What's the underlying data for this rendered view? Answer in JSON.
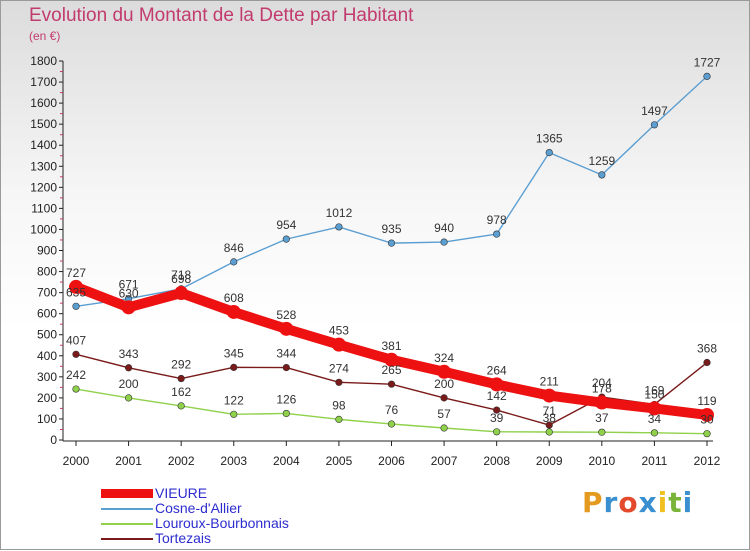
{
  "title": "Evolution du Montant de la Dette par Habitant",
  "subtitle": "(en €)",
  "brand": {
    "text": "Proxiti",
    "colors": [
      "#e39a1f",
      "#3a8fd0",
      "#e34a2c",
      "#3a8fd0",
      "#f0c020",
      "#7ab53a",
      "#3a8fd0"
    ]
  },
  "chart_data": {
    "type": "line",
    "x": [
      "2000",
      "2001",
      "2002",
      "2003",
      "2004",
      "2005",
      "2006",
      "2007",
      "2008",
      "2009",
      "2010",
      "2011",
      "2012"
    ],
    "ylim": [
      0,
      1800
    ],
    "yticks": [
      0,
      100,
      200,
      300,
      400,
      500,
      600,
      700,
      800,
      900,
      1000,
      1100,
      1200,
      1300,
      1400,
      1500,
      1600,
      1700,
      1800
    ],
    "grid": false,
    "legend_position": "bottom-left",
    "series": [
      {
        "name": "VIEURE",
        "color": "#ee1111",
        "values": [
          727,
          630,
          698,
          608,
          528,
          453,
          381,
          324,
          264,
          211,
          178,
          150,
          119
        ]
      },
      {
        "name": "Cosne-d'Allier",
        "color": "#5b9ed1",
        "values": [
          635,
          671,
          718,
          846,
          954,
          1012,
          935,
          940,
          978,
          1365,
          1259,
          1497,
          1727
        ]
      },
      {
        "name": "Louroux-Bourbonnais",
        "color": "#8fd14b",
        "values": [
          242,
          200,
          162,
          122,
          126,
          98,
          76,
          57,
          39,
          38,
          37,
          34,
          30
        ]
      },
      {
        "name": "Tortezais",
        "color": "#7a1a1a",
        "values": [
          407,
          343,
          292,
          345,
          344,
          274,
          265,
          200,
          142,
          71,
          204,
          169,
          368
        ]
      }
    ]
  }
}
